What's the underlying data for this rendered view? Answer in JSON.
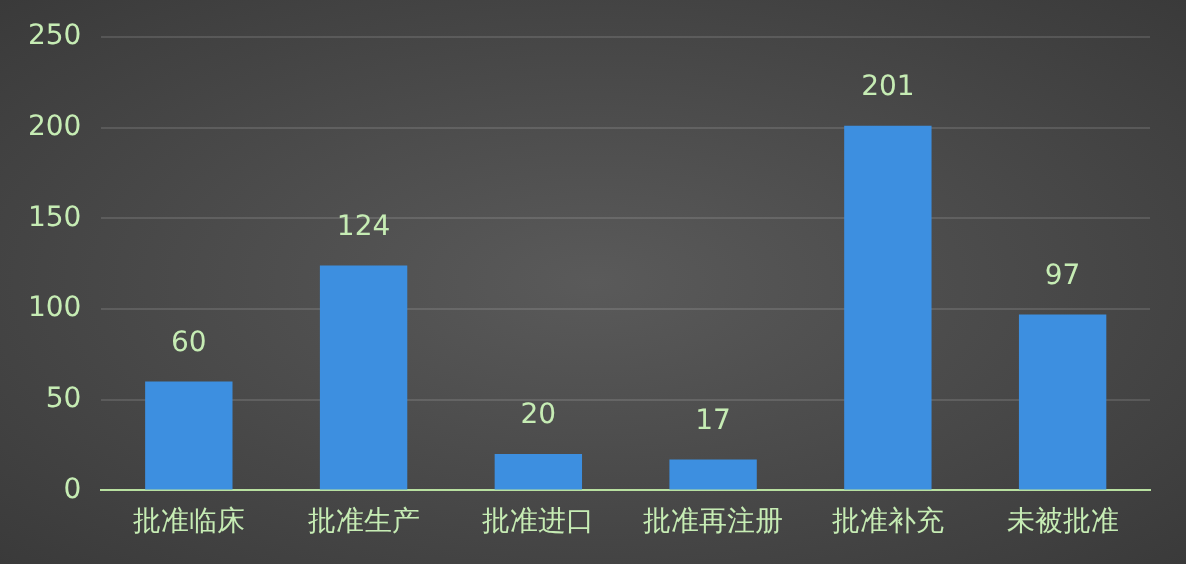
{
  "chart_data": {
    "type": "bar",
    "categories": [
      "批准临床",
      "批准生产",
      "批准进口",
      "批准再注册",
      "批准补充",
      "未被批准"
    ],
    "values": [
      60,
      124,
      20,
      17,
      201,
      97
    ],
    "color": "#3d8fe0",
    "ylim": [
      0,
      250
    ],
    "yticks": [
      0,
      50,
      100,
      150,
      200,
      250
    ],
    "grid": "y",
    "data_labels": true
  }
}
